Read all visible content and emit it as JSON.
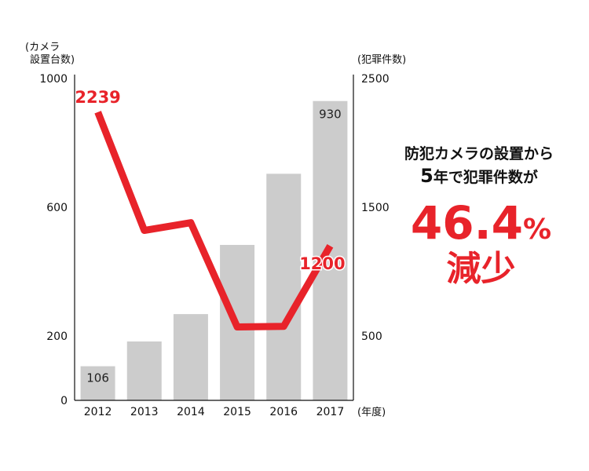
{
  "units": {
    "left_line1": "(カメラ",
    "left_line2": "設置台数)",
    "right": "(犯罪件数)",
    "x": "(年度)"
  },
  "chart_data": {
    "type": "bar+line",
    "categories": [
      "2012",
      "2013",
      "2014",
      "2015",
      "2016",
      "2017"
    ],
    "series": [
      {
        "type": "bar",
        "axis": "left",
        "values": [
          106,
          183,
          268,
          483,
          704,
          930
        ],
        "color": "#cccccc"
      },
      {
        "type": "line",
        "axis": "right",
        "values": [
          2239,
          1320,
          1380,
          570,
          575,
          1200
        ],
        "color": "#e8232a"
      }
    ],
    "data_labels": {
      "bar": {
        "0": "106",
        "5": "930"
      },
      "line": {
        "0": "2239",
        "5": "1200"
      }
    },
    "left_axis": {
      "ticks": [
        "0",
        "200",
        "600",
        "1000"
      ],
      "range": [
        0,
        1000
      ]
    },
    "right_axis": {
      "ticks": [
        "500",
        "1500",
        "2500"
      ],
      "range": [
        0,
        2500
      ]
    }
  },
  "headline": {
    "line1": "防犯カメラの設置から",
    "line2_num": "5",
    "line2_text": "年で犯罪件数が",
    "percent_value": "46.4",
    "percent_sign": "%",
    "decrease": "減少"
  }
}
